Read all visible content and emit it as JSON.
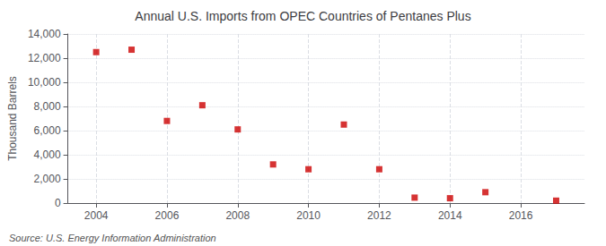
{
  "chart_data": {
    "type": "scatter",
    "title": "Annual U.S. Imports from OPEC Countries of Pentanes Plus",
    "ylabel": "Thousand Barrels",
    "annotations": [
      "Source: U.S. Energy Information Administration"
    ],
    "x": [
      2004,
      2005,
      2006,
      2007,
      2008,
      2009,
      2010,
      2011,
      2012,
      2013,
      2014,
      2015,
      2017
    ],
    "values": [
      12500,
      12700,
      6800,
      8100,
      6100,
      3200,
      2800,
      6500,
      2800,
      450,
      400,
      900,
      200
    ],
    "color": "#cc0000",
    "marker": "square",
    "xlim": [
      2003.2,
      2017.8
    ],
    "xticks": [
      2004,
      2006,
      2008,
      2010,
      2012,
      2014,
      2016
    ],
    "ylim": [
      0,
      14000
    ],
    "yticks": [
      0,
      {
        "value": 2000,
        "label": "2,000"
      },
      {
        "value": 4000,
        "label": "4,000"
      },
      {
        "value": 6000,
        "label": "6,000"
      },
      {
        "value": 8000,
        "label": "8,000"
      },
      {
        "value": 10000,
        "label": "10,000"
      },
      {
        "value": 12000,
        "label": "12,000"
      },
      {
        "value": 14000,
        "label": "14,000"
      }
    ],
    "grid": true
  }
}
